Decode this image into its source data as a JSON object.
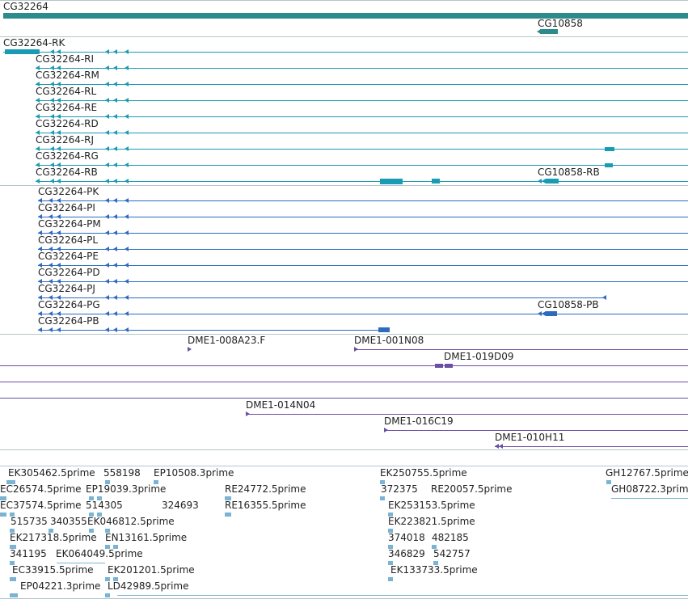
{
  "colors": {
    "gene": "#2e8b8b",
    "transcript": "#1a9bb4",
    "protein": "#2e6bbf",
    "clone": "#6a4fa3",
    "est": "#7ab3d4"
  },
  "tracks": {
    "gene": {
      "labels": [
        "CG32264",
        "CG10858"
      ]
    },
    "transcripts": {
      "labels": [
        "CG32264-RK",
        "CG32264-RI",
        "CG32264-RM",
        "CG32264-RL",
        "CG32264-RE",
        "CG32264-RD",
        "CG32264-RJ",
        "CG32264-RG",
        "CG32264-RB",
        "CG10858-RB"
      ]
    },
    "proteins": {
      "labels": [
        "CG32264-PK",
        "CG32264-PI",
        "CG32264-PM",
        "CG32264-PL",
        "CG32264-PE",
        "CG32264-PD",
        "CG32264-PJ",
        "CG32264-PG",
        "CG32264-PB",
        "CG10858-PB"
      ]
    },
    "clones": {
      "labels": [
        "DME1-008A23.F",
        "DME1-001N08",
        "DME1-019D09",
        "DME1-014N04",
        "DME1-016C19",
        "DME1-010H11"
      ]
    },
    "ests": {
      "labels": [
        "EK305462.5prime",
        "558198",
        "EP10508.3prime",
        "EK250755.5prime",
        "GH12767.5prime",
        "EC26574.5prime",
        "EP19039.3prime",
        "RE24772.5prime",
        "372375",
        "RE20057.5prime",
        "GH08722.3prime",
        "EC37574.5prime",
        "514305",
        "324693",
        "RE16355.5prime",
        "EK253153.5prime",
        "515735",
        "340355",
        "EK046812.5prime",
        "EK223821.5prime",
        "EK217318.5prime",
        "EN13161.5prime",
        "374018",
        "482185",
        "341195",
        "EK064049.5prime",
        "346829",
        "542757",
        "EC33915.5prime",
        "EK201201.5prime",
        "EK133733.5prime",
        "EP04221.3prime",
        "LD42989.5prime"
      ]
    }
  }
}
